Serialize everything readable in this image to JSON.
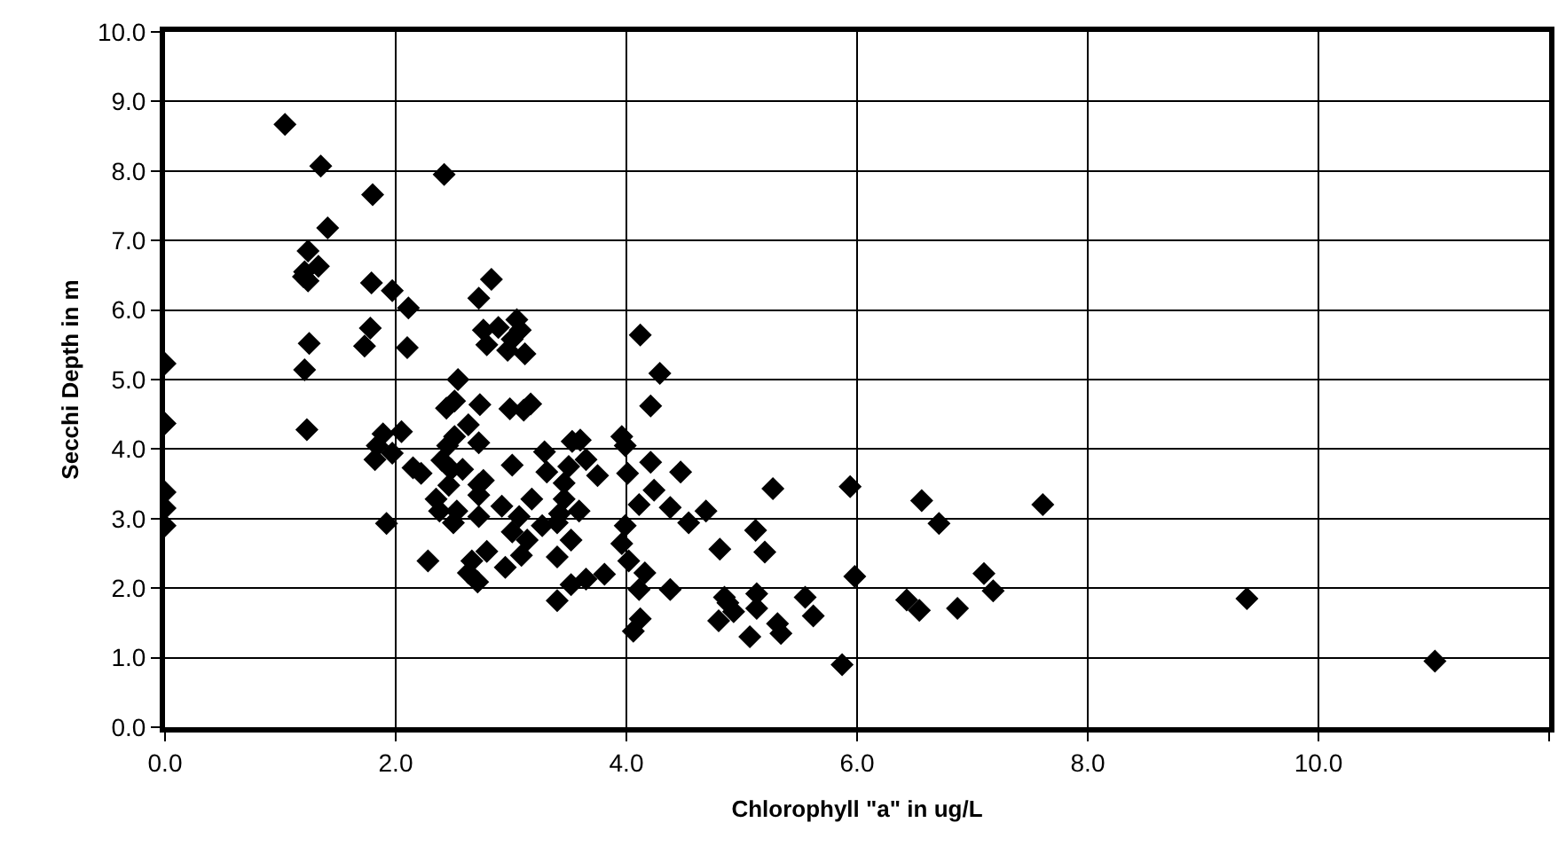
{
  "chart_data": {
    "type": "scatter",
    "xlabel": "Chlorophyll \"a\" in ug/L",
    "ylabel": "Secchi Depth in m",
    "marker": "diamond",
    "grid": true,
    "legend": false,
    "xlim": [
      0,
      12
    ],
    "ylim": [
      0,
      10
    ],
    "xticks": [
      {
        "value": 0,
        "label": "0.0"
      },
      {
        "value": 2,
        "label": "2.0"
      },
      {
        "value": 4,
        "label": "4.0"
      },
      {
        "value": 6,
        "label": "6.0"
      },
      {
        "value": 8,
        "label": "8.0"
      },
      {
        "value": 10,
        "label": "10.0"
      },
      {
        "value": 12,
        "label": null
      }
    ],
    "yticks": [
      {
        "value": 0,
        "label": "0.0"
      },
      {
        "value": 1,
        "label": "1.0"
      },
      {
        "value": 2,
        "label": "2.0"
      },
      {
        "value": 3,
        "label": "3.0"
      },
      {
        "value": 4,
        "label": "4.0"
      },
      {
        "value": 5,
        "label": "5.0"
      },
      {
        "value": 6,
        "label": "6.0"
      },
      {
        "value": 7,
        "label": "7.0"
      },
      {
        "value": 8,
        "label": "8.0"
      },
      {
        "value": 9,
        "label": "9.0"
      },
      {
        "value": 10,
        "label": "10.0"
      }
    ],
    "series": [
      {
        "color": "#000000",
        "x": [
          1.04,
          1.35,
          1.41,
          1.8,
          2.42,
          1.24,
          1.21,
          1.33,
          1.24,
          1.2,
          1.79,
          1.97,
          2.11,
          1.25,
          1.21,
          1.78,
          1.73,
          2.1,
          0,
          0,
          1.23,
          2.72,
          2.83,
          2.76,
          2.89,
          2.79,
          3.05,
          3.08,
          3.01,
          3.12,
          2.97,
          2.54,
          2.44,
          2.51,
          2.73,
          2.99,
          3.11,
          2.63,
          3.17,
          0,
          0,
          0,
          1.92,
          1.82,
          1.89,
          1.97,
          1.84,
          2.05,
          2.51,
          2.45,
          2.4,
          2.48,
          2.58,
          2.72,
          2.15,
          2.22,
          3.01,
          3.29,
          3.31,
          3.5,
          3.46,
          3.46,
          3.53,
          3.6,
          3.65,
          3.75,
          2.46,
          2.35,
          2.38,
          2.53,
          2.5,
          2.72,
          2.76,
          2.72,
          2.72,
          2.92,
          3.18,
          3.07,
          3.01,
          3.14,
          3.09,
          3.27,
          3.4,
          3.42,
          3.59,
          3.52,
          3.4,
          2.79,
          2.95,
          2.66,
          2.63,
          2.71,
          2.28,
          3.4,
          3.52,
          3.65,
          3.81,
          3.96,
          3.99,
          4.01,
          3.99,
          3.96,
          4.02,
          4.12,
          4.29,
          4.21,
          4.21,
          4.11,
          4.24,
          4.38,
          4.47,
          4.54,
          4.69,
          4.16,
          4.11,
          4.38,
          4.12,
          4.06,
          4.81,
          5.12,
          5.2,
          5.27,
          5.94,
          5.98,
          4.85,
          4.8,
          4.93,
          5.13,
          5.13,
          5.07,
          5.31,
          5.34,
          5.55,
          5.62,
          5.87,
          4.88,
          6.56,
          6.71,
          7.61,
          7.1,
          7.18,
          6.43,
          6.54,
          6.87,
          9.38,
          11.01
        ],
        "values": [
          8.67,
          8.07,
          7.18,
          7.66,
          7.95,
          6.85,
          6.55,
          6.63,
          6.42,
          6.48,
          6.39,
          6.28,
          6.03,
          5.52,
          5.14,
          5.74,
          5.48,
          5.46,
          5.23,
          4.37,
          4.28,
          6.17,
          6.44,
          5.71,
          5.75,
          5.5,
          5.86,
          5.71,
          5.58,
          5.37,
          5.42,
          5.0,
          4.59,
          4.69,
          4.64,
          4.58,
          4.56,
          4.35,
          4.65,
          2.9,
          3.15,
          3.38,
          2.93,
          3.85,
          4.22,
          3.94,
          4.05,
          4.25,
          4.18,
          4.05,
          3.84,
          3.71,
          3.71,
          4.09,
          3.73,
          3.65,
          3.77,
          3.96,
          3.67,
          3.75,
          3.51,
          3.28,
          4.11,
          4.13,
          3.85,
          3.62,
          3.48,
          3.28,
          3.11,
          3.11,
          2.94,
          3.49,
          3.55,
          3.34,
          3.03,
          3.18,
          3.28,
          3.03,
          2.81,
          2.69,
          2.47,
          2.9,
          2.94,
          3.07,
          3.11,
          2.69,
          2.45,
          2.53,
          2.3,
          2.39,
          2.22,
          2.09,
          2.39,
          1.82,
          2.05,
          2.13,
          2.2,
          4.18,
          4.05,
          3.65,
          2.9,
          2.64,
          2.39,
          5.64,
          5.09,
          4.62,
          3.81,
          3.2,
          3.41,
          3.16,
          3.67,
          2.94,
          3.11,
          2.22,
          1.98,
          1.98,
          1.56,
          1.38,
          2.56,
          2.83,
          2.52,
          3.43,
          3.46,
          2.17,
          1.87,
          1.53,
          1.66,
          1.92,
          1.71,
          1.3,
          1.49,
          1.35,
          1.87,
          1.6,
          0.9,
          1.79,
          3.26,
          2.93,
          3.2,
          2.21,
          1.96,
          1.83,
          1.68,
          1.71,
          1.85,
          0.95
        ]
      }
    ]
  }
}
